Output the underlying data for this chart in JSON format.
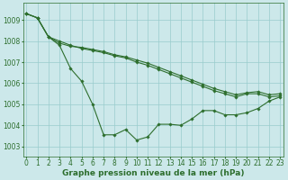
{
  "title": "Graphe pression niveau de la mer (hPa)",
  "background_color": "#cce8ea",
  "grid_color": "#99cccc",
  "line_color": "#2d6e2d",
  "x_labels": [
    "0",
    "1",
    "2",
    "3",
    "4",
    "5",
    "6",
    "7",
    "8",
    "9",
    "10",
    "11",
    "12",
    "13",
    "14",
    "15",
    "16",
    "17",
    "18",
    "19",
    "20",
    "21",
    "22",
    "23"
  ],
  "ylim": [
    1002.5,
    1009.8
  ],
  "yticks": [
    1003,
    1004,
    1005,
    1006,
    1007,
    1008,
    1009
  ],
  "series": [
    [
      1009.3,
      1009.1,
      1008.2,
      1007.8,
      1006.7,
      1006.1,
      1005.0,
      1003.55,
      1003.55,
      1003.8,
      1003.3,
      1003.45,
      1004.05,
      1004.05,
      1004.0,
      1004.3,
      1004.7,
      1004.7,
      1004.5,
      1004.5,
      1004.6,
      1004.8,
      1005.15,
      1005.35
    ],
    [
      1009.3,
      1009.1,
      1008.2,
      1008.0,
      1007.8,
      1007.65,
      1007.55,
      1007.45,
      1007.3,
      1007.2,
      1007.0,
      1006.85,
      1006.65,
      1006.45,
      1006.25,
      1006.05,
      1005.85,
      1005.65,
      1005.5,
      1005.35,
      1005.5,
      1005.5,
      1005.35,
      1005.4
    ],
    [
      1009.3,
      1009.1,
      1008.2,
      1007.9,
      1007.75,
      1007.7,
      1007.6,
      1007.5,
      1007.35,
      1007.25,
      1007.1,
      1006.95,
      1006.75,
      1006.55,
      1006.35,
      1006.15,
      1005.95,
      1005.75,
      1005.6,
      1005.45,
      1005.55,
      1005.6,
      1005.45,
      1005.5
    ]
  ],
  "marker": "D",
  "marker_size": 1.8,
  "linewidth": 0.8,
  "title_fontsize": 6.5,
  "tick_fontsize": 5.5
}
